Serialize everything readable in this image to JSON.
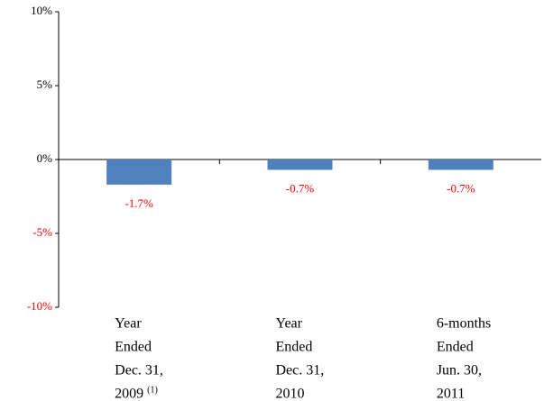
{
  "chart_data": {
    "type": "bar",
    "categories": [
      [
        "Year",
        "Ended",
        "Dec. 31,",
        "2009"
      ],
      [
        "Year",
        "Ended",
        "Dec. 31,",
        "2010"
      ],
      [
        "6-months",
        "Ended",
        "Jun. 30,",
        "2011"
      ]
    ],
    "category_note": "(1)",
    "values": [
      -1.7,
      -0.7,
      -0.7
    ],
    "value_labels": [
      "-1.7%",
      "-0.7%",
      "-0.7%"
    ],
    "color": "#4f81bd",
    "negative_label_color": "#ff0000",
    "ylim": [
      -10,
      10
    ],
    "yticks": [
      {
        "value": -10,
        "label": "-10%"
      },
      {
        "value": -5,
        "label": "-5%"
      },
      {
        "value": 0,
        "label": "0%"
      },
      {
        "value": 5,
        "label": "5%"
      },
      {
        "value": 10,
        "label": "10%"
      }
    ],
    "grid": false
  }
}
